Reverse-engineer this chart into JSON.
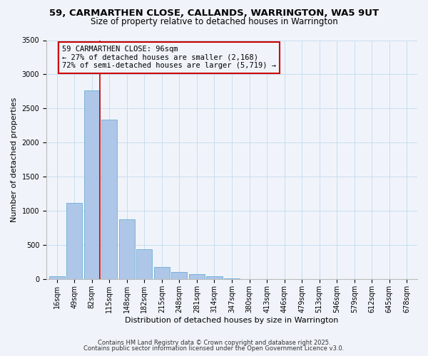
{
  "title": "59, CARMARTHEN CLOSE, CALLANDS, WARRINGTON, WA5 9UT",
  "subtitle": "Size of property relative to detached houses in Warrington",
  "xlabel": "Distribution of detached houses by size in Warrington",
  "ylabel": "Number of detached properties",
  "bar_labels": [
    "16sqm",
    "49sqm",
    "82sqm",
    "115sqm",
    "148sqm",
    "182sqm",
    "215sqm",
    "248sqm",
    "281sqm",
    "314sqm",
    "347sqm",
    "380sqm",
    "413sqm",
    "446sqm",
    "479sqm",
    "513sqm",
    "546sqm",
    "579sqm",
    "612sqm",
    "645sqm",
    "678sqm"
  ],
  "bar_values": [
    50,
    1120,
    2770,
    2340,
    880,
    440,
    185,
    105,
    75,
    45,
    20,
    8,
    3,
    2,
    1,
    1,
    0,
    0,
    0,
    0,
    0
  ],
  "bar_color": "#aec6e8",
  "bar_edgecolor": "#6baed6",
  "vline_color": "#cc0000",
  "vline_x_index": 2,
  "annotation_title": "59 CARMARTHEN CLOSE: 96sqm",
  "annotation_line1": "← 27% of detached houses are smaller (2,168)",
  "annotation_line2": "72% of semi-detached houses are larger (5,719) →",
  "annotation_box_edgecolor": "#cc0000",
  "ylim": [
    0,
    3500
  ],
  "yticks": [
    0,
    500,
    1000,
    1500,
    2000,
    2500,
    3000,
    3500
  ],
  "footer1": "Contains HM Land Registry data © Crown copyright and database right 2025.",
  "footer2": "Contains public sector information licensed under the Open Government Licence v3.0.",
  "bg_color": "#f0f4fa",
  "grid_color": "#c8ddf0",
  "title_fontsize": 9.5,
  "subtitle_fontsize": 8.5,
  "axis_label_fontsize": 8,
  "tick_fontsize": 7,
  "annotation_fontsize": 7.5,
  "footer_fontsize": 6
}
